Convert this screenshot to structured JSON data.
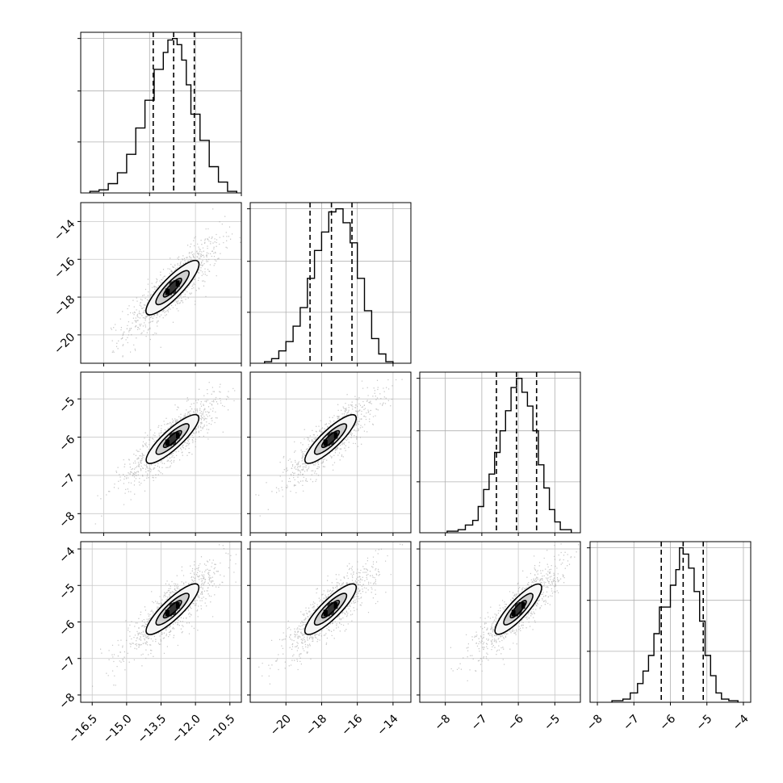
{
  "chart_data": {
    "type": "corner",
    "parameters": 4,
    "grid": true,
    "panels": [
      {
        "row": 0,
        "col": 0,
        "type": "histogram",
        "xlim": [
          -17.0,
          -10.0
        ],
        "bin_edges": [
          -16.6,
          -16.2,
          -15.8,
          -15.4,
          -15.0,
          -14.6,
          -14.2,
          -13.8,
          -13.4,
          -13.2,
          -13.0,
          -12.8,
          -12.6,
          -12.4,
          -12.2,
          -11.8,
          -11.4,
          -11.0,
          -10.6,
          -10.2
        ],
        "counts": [
          0.01,
          0.02,
          0.06,
          0.13,
          0.25,
          0.42,
          0.6,
          0.8,
          0.91,
          0.99,
          1.0,
          0.96,
          0.86,
          0.7,
          0.51,
          0.34,
          0.17,
          0.07,
          0.01
        ],
        "quantiles": [
          -13.84,
          -12.95,
          -12.05
        ]
      },
      {
        "row": 1,
        "col": 0,
        "type": "density",
        "xlim": [
          -17.0,
          -10.0
        ],
        "ylim": [
          -21.5,
          -13.0
        ],
        "yticks": [
          -14,
          -16,
          -18,
          -20
        ],
        "mean": [
          -13.0,
          -17.5
        ],
        "sigma": [
          1.0,
          1.25
        ],
        "contour_scales": [
          0.55,
          1.0,
          1.6
        ]
      },
      {
        "row": 1,
        "col": 1,
        "type": "histogram",
        "xlim": [
          -22.0,
          -13.0
        ],
        "bin_edges": [
          -21.2,
          -20.8,
          -20.4,
          -20.0,
          -19.6,
          -19.2,
          -18.8,
          -18.4,
          -18.0,
          -17.6,
          -17.2,
          -16.8,
          -16.4,
          -16.0,
          -15.6,
          -15.2,
          -14.8,
          -14.4,
          -14.0
        ],
        "counts": [
          0.01,
          0.03,
          0.08,
          0.14,
          0.24,
          0.36,
          0.55,
          0.73,
          0.85,
          0.98,
          1.0,
          0.91,
          0.78,
          0.55,
          0.34,
          0.16,
          0.06,
          0.01
        ],
        "quantiles": [
          -18.65,
          -17.45,
          -16.3
        ]
      },
      {
        "row": 2,
        "col": 0,
        "type": "density",
        "xlim": [
          -17.0,
          -10.0
        ],
        "ylim": [
          -8.5,
          -4.3
        ],
        "yticks": [
          -5,
          -6,
          -7,
          -8
        ],
        "mean": [
          -13.0,
          -6.05
        ],
        "sigma": [
          1.0,
          0.55
        ],
        "contour_scales": [
          0.55,
          1.0,
          1.6
        ]
      },
      {
        "row": 2,
        "col": 1,
        "type": "density",
        "xlim": [
          -22.0,
          -13.0
        ],
        "ylim": [
          -8.5,
          -4.3
        ],
        "mean": [
          -17.5,
          -6.05
        ],
        "sigma": [
          1.25,
          0.55
        ],
        "contour_scales": [
          0.55,
          1.0,
          1.6
        ]
      },
      {
        "row": 2,
        "col": 2,
        "type": "histogram",
        "xlim": [
          -8.7,
          -4.3
        ],
        "bin_edges": [
          -7.95,
          -7.65,
          -7.45,
          -7.25,
          -7.1,
          -6.95,
          -6.8,
          -6.65,
          -6.5,
          -6.35,
          -6.2,
          -6.05,
          -5.9,
          -5.75,
          -5.6,
          -5.45,
          -5.3,
          -5.15,
          -5.0,
          -4.85,
          -4.55
        ],
        "counts": [
          0.01,
          0.02,
          0.05,
          0.08,
          0.17,
          0.28,
          0.38,
          0.52,
          0.66,
          0.79,
          0.94,
          1.0,
          0.91,
          0.82,
          0.66,
          0.44,
          0.29,
          0.15,
          0.07,
          0.02
        ],
        "quantiles": [
          -6.6,
          -6.05,
          -5.5
        ]
      },
      {
        "row": 3,
        "col": 0,
        "type": "density",
        "xlim": [
          -17.0,
          -10.0
        ],
        "ylim": [
          -8.2,
          -3.8
        ],
        "yticks": [
          -4,
          -5,
          -6,
          -7,
          -8
        ],
        "xticks": [
          -16.5,
          -15.0,
          -13.5,
          -12.0,
          -10.5
        ],
        "xtick_labels": [
          "−16.5",
          "−15.0",
          "−13.5",
          "−12.0",
          "−10.5"
        ],
        "mean": [
          -13.0,
          -5.65
        ],
        "sigma": [
          1.0,
          0.6
        ],
        "contour_scales": [
          0.55,
          1.0,
          1.6
        ]
      },
      {
        "row": 3,
        "col": 1,
        "type": "density",
        "xlim": [
          -22.0,
          -13.0
        ],
        "ylim": [
          -8.2,
          -3.8
        ],
        "xticks": [
          -20,
          -18,
          -16,
          -14
        ],
        "mean": [
          -17.5,
          -5.65
        ],
        "sigma": [
          1.25,
          0.6
        ],
        "contour_scales": [
          0.55,
          1.0,
          1.6
        ]
      },
      {
        "row": 3,
        "col": 2,
        "type": "density",
        "xlim": [
          -8.7,
          -4.3
        ],
        "ylim": [
          -8.2,
          -3.8
        ],
        "xticks": [
          -8,
          -7,
          -6,
          -5
        ],
        "mean": [
          -6.0,
          -5.65
        ],
        "sigma": [
          0.55,
          0.6
        ],
        "contour_scales": [
          0.55,
          1.0,
          1.6
        ]
      },
      {
        "row": 3,
        "col": 3,
        "type": "histogram",
        "xlim": [
          -8.2,
          -3.8
        ],
        "xticks": [
          -8,
          -7,
          -6,
          -5,
          -4
        ],
        "bin_edges": [
          -7.6,
          -7.3,
          -7.1,
          -6.9,
          -6.75,
          -6.6,
          -6.45,
          -6.3,
          -6.15,
          -6.0,
          -5.85,
          -5.75,
          -5.65,
          -5.5,
          -5.35,
          -5.2,
          -5.05,
          -4.9,
          -4.75,
          -4.6,
          -4.4,
          -4.15
        ],
        "counts": [
          0.01,
          0.02,
          0.06,
          0.12,
          0.2,
          0.3,
          0.44,
          0.61,
          0.61,
          0.75,
          0.85,
          0.99,
          0.95,
          0.86,
          0.71,
          0.52,
          0.3,
          0.17,
          0.06,
          0.02,
          0.01
        ],
        "quantiles": [
          -6.25,
          -5.65,
          -5.1
        ]
      }
    ]
  }
}
